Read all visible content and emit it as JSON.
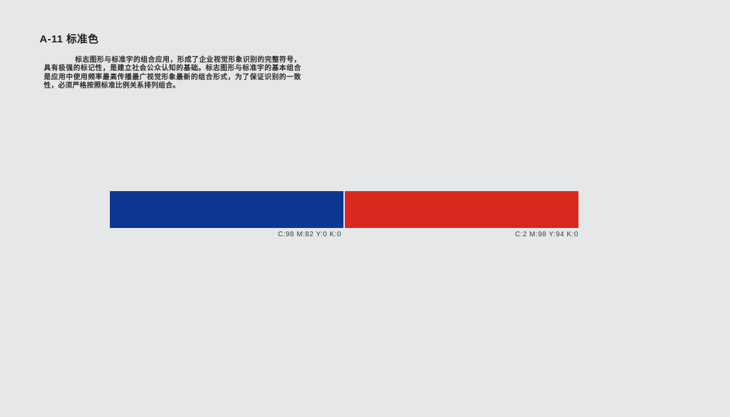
{
  "page": {
    "background_color": "#E6E7E9",
    "title": "A-11 标准色",
    "description": "标志图形与标准字的组合应用，形成了企业视觉形象识别的完整符号，具有极强的标记性，是建立社会公众认知的基础。标志图形与标准字的基本组合是应用中使用频率最高传播最广视觉形象最新的组合形式，为了保证识别的一致性，必须严格按照标准比例关系排列组合。"
  },
  "swatches": [
    {
      "name": "standard-blue",
      "hex": "#0D3793",
      "cmyk_label": "C:98 M:82 Y:0 K:0"
    },
    {
      "name": "standard-red",
      "hex": "#D9281E",
      "cmyk_label": "C:2 M:98 Y:94 K:0"
    }
  ]
}
